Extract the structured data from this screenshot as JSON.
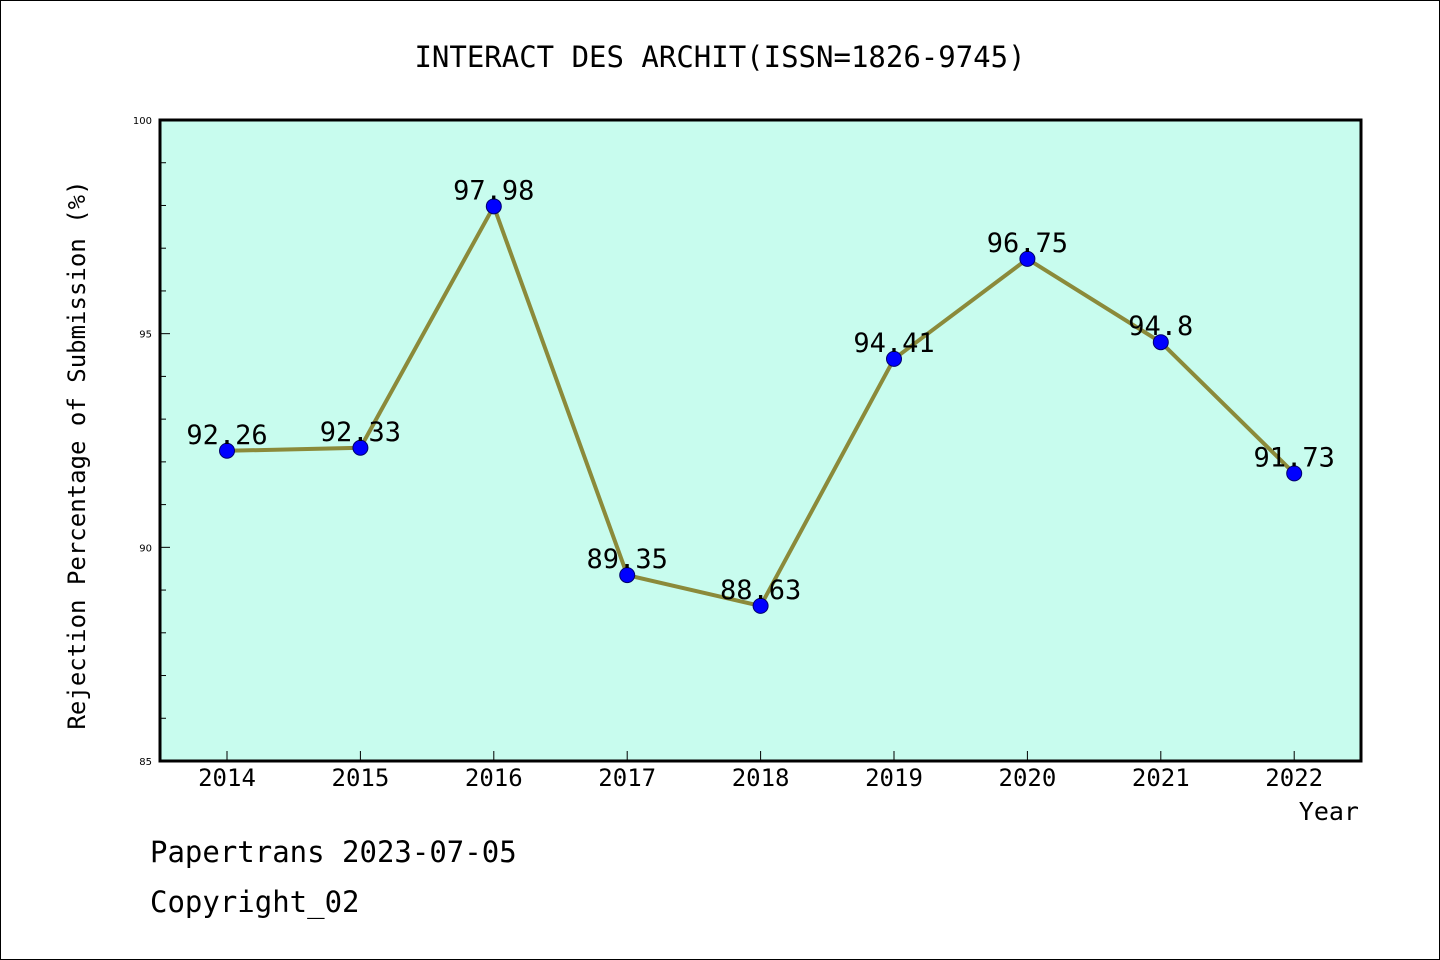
{
  "chart_data": {
    "type": "line",
    "title": "INTERACT DES ARCHIT(ISSN=1826-9745)",
    "xlabel": "Year",
    "ylabel": "Rejection Percentage of Submission (%)",
    "categories": [
      "2014",
      "2015",
      "2016",
      "2017",
      "2018",
      "2019",
      "2020",
      "2021",
      "2022"
    ],
    "values": [
      92.26,
      92.33,
      97.98,
      89.35,
      88.63,
      94.41,
      96.75,
      94.8,
      91.73
    ],
    "data_labels": [
      "92.26",
      "92.33",
      "97.98",
      "89.35",
      "88.63",
      "94.41",
      "96.75",
      "94.8",
      "91.73"
    ],
    "ylim": [
      85,
      100
    ],
    "yticks": [
      85,
      90,
      95,
      100
    ],
    "grid": false,
    "colors": {
      "plot_background": "#c8fcee",
      "line": "#8b8a3a",
      "marker": "#0000ff"
    }
  },
  "footer": {
    "date_line": "Papertrans 2023-07-05",
    "copyright_line": "Copyright_02"
  }
}
